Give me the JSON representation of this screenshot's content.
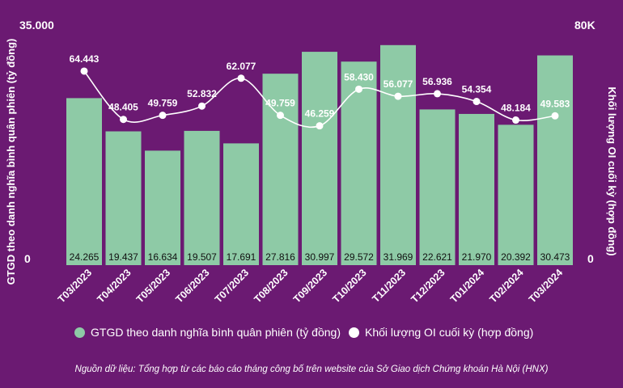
{
  "chart_data": {
    "type": "bar+line",
    "categories": [
      "T03/2023",
      "T04/2023",
      "T05/2023",
      "T06/2023",
      "T07/2023",
      "T08/2023",
      "T09/2023",
      "T10/2023",
      "T11/2023",
      "T12/2023",
      "T01/2024",
      "T02/2024",
      "T03/2024"
    ],
    "series": [
      {
        "name": "GTGD theo danh nghĩa bình quân phiên (tỷ đồng)",
        "type": "bar",
        "axis": "left",
        "values": [
          24265,
          19437,
          16634,
          19507,
          17691,
          27816,
          30997,
          29572,
          31969,
          22621,
          21970,
          20392,
          30473
        ],
        "labels": [
          "24.265",
          "19.437",
          "16.634",
          "19.507",
          "17.691",
          "27.816",
          "30.997",
          "29.572",
          "31.969",
          "22.621",
          "21.970",
          "20.392",
          "30.473"
        ],
        "color": "#8ecaa6"
      },
      {
        "name": "Khối lượng OI cuối kỳ (hợp đồng)",
        "type": "line",
        "axis": "right",
        "values": [
          64443,
          48405,
          49759,
          52832,
          62077,
          49759,
          46259,
          58430,
          56077,
          56936,
          54354,
          48184,
          49583
        ],
        "labels": [
          "64.443",
          "48.405",
          "49.759",
          "52.832",
          "62.077",
          "49.759",
          "46.259",
          "58.430",
          "56.077",
          "56.936",
          "54.354",
          "48.184",
          "49.583"
        ],
        "color": "#ffffff"
      }
    ],
    "left_axis": {
      "label": "GTGD theo danh nghĩa bình quân phiên (tỷ đồng)",
      "min": 0,
      "max": 35000,
      "min_label": "0",
      "max_label": "35.000"
    },
    "right_axis": {
      "label": "Khối lượng OI cuối kỳ (hợp đồng)",
      "min": 0,
      "max": 80000,
      "min_label": "0",
      "max_label": "80K"
    },
    "grid": false,
    "legend_position": "bottom"
  },
  "source_note": "Nguồn dữ liệu: Tổng hợp từ các báo cáo tháng công bố trên website của Sở Giao dịch Chứng khoán Hà Nội (HNX)",
  "colors": {
    "background": "#6b1a72",
    "bar": "#8ecaa6",
    "line": "#ffffff",
    "bar_label": "#111111"
  }
}
